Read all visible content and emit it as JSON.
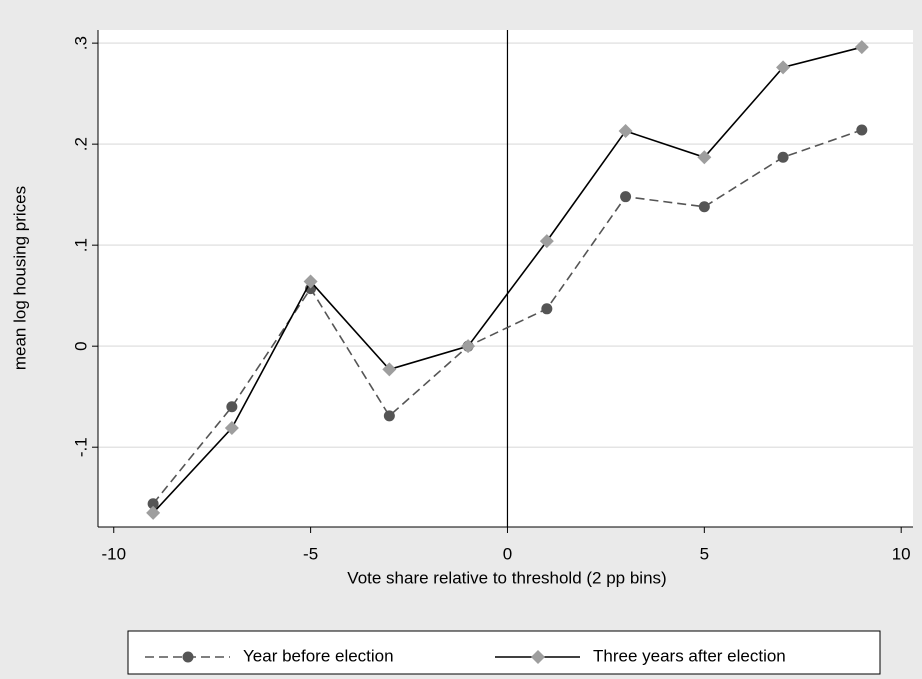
{
  "chart_data": {
    "type": "line",
    "x_label": "Vote share relative to threshold (2 pp bins)",
    "y_label": "mean log housing prices",
    "x": [
      -9,
      -7,
      -5,
      -3,
      -1,
      1,
      3,
      5,
      7,
      9
    ],
    "series": [
      {
        "name": "Year before election",
        "color": "#555555",
        "line_style": "dashed",
        "marker": "circle",
        "values": [
          -0.156,
          -0.06,
          0.057,
          -0.069,
          0,
          0.037,
          0.148,
          0.138,
          0.187,
          0.214
        ]
      },
      {
        "name": "Three years after election",
        "color": "#9e9e9e",
        "line_color": "#000000",
        "line_style": "solid",
        "marker": "diamond",
        "values": [
          -0.165,
          -0.081,
          0.064,
          -0.023,
          0,
          0.104,
          0.213,
          0.187,
          0.276,
          0.296
        ]
      }
    ],
    "xlim": [
      -10.4,
      10.3
    ],
    "xticks": [
      -10,
      -5,
      0,
      5,
      10
    ],
    "ylim": [
      -0.179,
      0.313
    ],
    "yticks": [
      {
        "value": -0.1,
        "label": "-.1"
      },
      0,
      {
        "value": 0.1,
        "label": ".1"
      },
      {
        "value": 0.2,
        "label": ".2"
      },
      {
        "value": 0.3,
        "label": ".3"
      }
    ],
    "grid": true,
    "vline": 0,
    "legend": "bottom"
  }
}
